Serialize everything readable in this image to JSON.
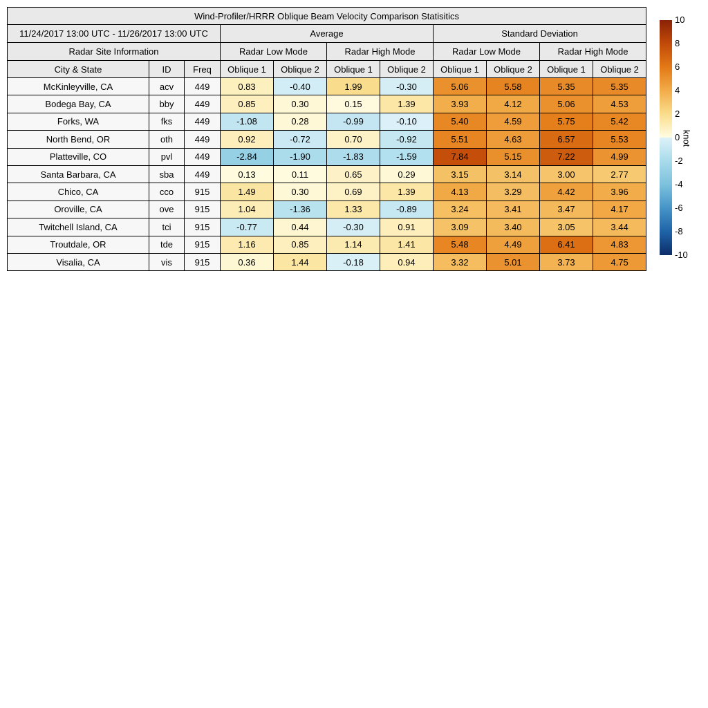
{
  "chart_data": {
    "type": "heatmap-table",
    "title": "Wind-Profiler/HRRR Oblique Beam Velocity Comparison Statisitics",
    "date_range": "11/24/2017 13:00 UTC - 11/26/2017 13:00 UTC",
    "groups": [
      "Average",
      "Standard Deviation"
    ],
    "site_info_label": "Radar Site Information",
    "mode_labels": [
      "Radar Low Mode",
      "Radar High Mode",
      "Radar Low Mode",
      "Radar High Mode"
    ],
    "site_columns": [
      "City & State",
      "ID",
      "Freq"
    ],
    "oblique_labels": [
      "Oblique 1",
      "Oblique 2",
      "Oblique 1",
      "Oblique 2",
      "Oblique 1",
      "Oblique 2",
      "Oblique 1",
      "Oblique 2"
    ],
    "value_precision": 2,
    "rows": [
      {
        "city": "McKinleyville, CA",
        "id": "acv",
        "freq": "449",
        "values": [
          0.83,
          -0.4,
          1.99,
          -0.3,
          5.06,
          5.58,
          5.35,
          5.35
        ]
      },
      {
        "city": "Bodega Bay, CA",
        "id": "bby",
        "freq": "449",
        "values": [
          0.85,
          0.3,
          0.15,
          1.39,
          3.93,
          4.12,
          5.06,
          4.53
        ]
      },
      {
        "city": "Forks, WA",
        "id": "fks",
        "freq": "449",
        "values": [
          -1.08,
          0.28,
          -0.99,
          -0.1,
          5.4,
          4.59,
          5.75,
          5.42
        ]
      },
      {
        "city": "North Bend, OR",
        "id": "oth",
        "freq": "449",
        "values": [
          0.92,
          -0.72,
          0.7,
          -0.92,
          5.51,
          4.63,
          6.57,
          5.53
        ]
      },
      {
        "city": "Platteville, CO",
        "id": "pvl",
        "freq": "449",
        "values": [
          -2.84,
          -1.9,
          -1.83,
          -1.59,
          7.84,
          5.15,
          7.22,
          4.99
        ]
      },
      {
        "city": "Santa Barbara, CA",
        "id": "sba",
        "freq": "449",
        "values": [
          0.13,
          0.11,
          0.65,
          0.29,
          3.15,
          3.14,
          3.0,
          2.77
        ]
      },
      {
        "city": "Chico, CA",
        "id": "cco",
        "freq": "915",
        "values": [
          1.49,
          0.3,
          0.69,
          1.39,
          4.13,
          3.29,
          4.42,
          3.96
        ]
      },
      {
        "city": "Oroville, CA",
        "id": "ove",
        "freq": "915",
        "values": [
          1.04,
          -1.36,
          1.33,
          -0.89,
          3.24,
          3.41,
          3.47,
          4.17
        ]
      },
      {
        "city": "Twitchell Island, CA",
        "id": "tci",
        "freq": "915",
        "values": [
          -0.77,
          0.44,
          -0.3,
          0.91,
          3.09,
          3.4,
          3.05,
          3.44
        ]
      },
      {
        "city": "Troutdale, OR",
        "id": "tde",
        "freq": "915",
        "values": [
          1.16,
          0.85,
          1.14,
          1.41,
          5.48,
          4.49,
          6.41,
          4.83
        ]
      },
      {
        "city": "Visalia, CA",
        "id": "vis",
        "freq": "915",
        "values": [
          0.36,
          1.44,
          -0.18,
          0.94,
          3.32,
          5.01,
          3.73,
          4.75
        ]
      }
    ],
    "colorbar": {
      "label": "knot",
      "min": -10,
      "max": 10,
      "ticks": [
        10,
        8,
        6,
        4,
        2,
        0,
        -2,
        -4,
        -6,
        -8,
        -10
      ],
      "stops": [
        [
          -10,
          "#0c2d68"
        ],
        [
          -8,
          "#1f63a8"
        ],
        [
          -6,
          "#4694c7"
        ],
        [
          -4,
          "#7cc1dd"
        ],
        [
          -2,
          "#a8dbeb"
        ],
        [
          -0.05,
          "#dcf1f8"
        ],
        [
          0.05,
          "#fffce1"
        ],
        [
          2,
          "#fadd8c"
        ],
        [
          4,
          "#f2ac49"
        ],
        [
          6,
          "#e37916"
        ],
        [
          8,
          "#c14a09"
        ],
        [
          10,
          "#8a2206"
        ]
      ]
    }
  }
}
